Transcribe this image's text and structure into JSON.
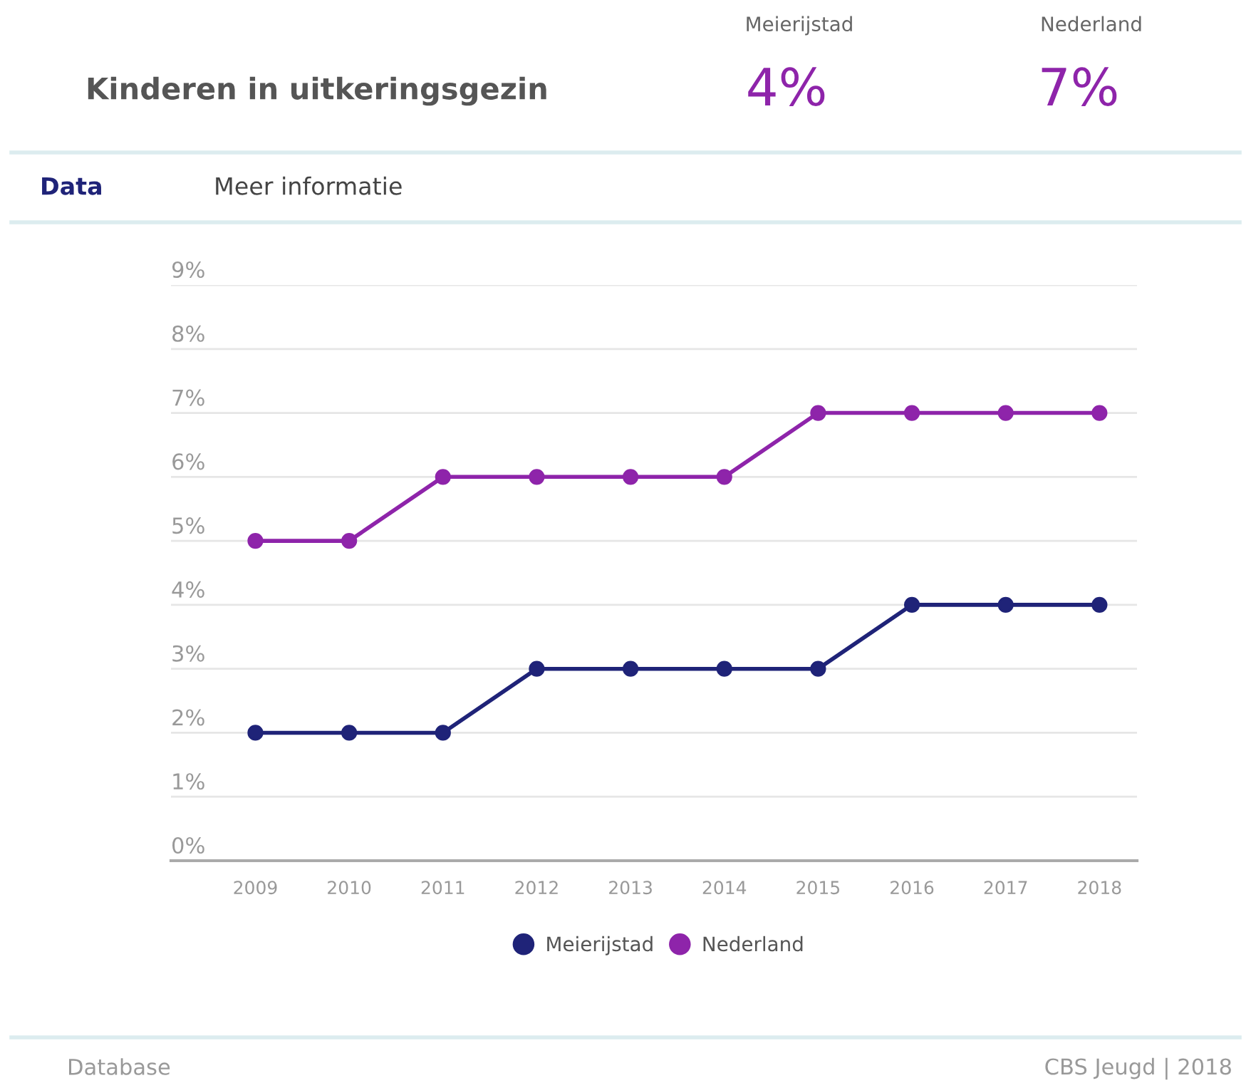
{
  "chart_data": {
    "type": "line",
    "title": "Kinderen in uitkeringsgezin",
    "annotations": [
      "Meierijstad",
      "Nederland",
      "4%",
      "7%",
      "Data",
      "Meer informatie",
      "Database",
      "CBS Jeugd | 2018"
    ],
    "categories": [
      "2009",
      "2010",
      "2011",
      "2012",
      "2013",
      "2014",
      "2015",
      "2016",
      "2017",
      "2018"
    ],
    "series": [
      {
        "name": "Meierijstad",
        "color": "#1f2378",
        "values": [
          2,
          2,
          2,
          3,
          3,
          3,
          3,
          4,
          4,
          4
        ]
      },
      {
        "name": "Nederland",
        "color": "#8e24aa",
        "values": [
          5,
          5,
          6,
          6,
          6,
          6,
          7,
          7,
          7,
          7
        ]
      }
    ],
    "ylim": [
      0,
      9
    ],
    "yticks": [
      {
        "value": 0,
        "label": "0%"
      },
      {
        "value": 1,
        "label": "1%"
      },
      {
        "value": 2,
        "label": "2%"
      },
      {
        "value": 3,
        "label": "3%"
      },
      {
        "value": 4,
        "label": "4%"
      },
      {
        "value": 5,
        "label": "5%"
      },
      {
        "value": 6,
        "label": "6%"
      },
      {
        "value": 7,
        "label": "7%"
      },
      {
        "value": 8,
        "label": "8%"
      },
      {
        "value": 9,
        "label": "9%"
      }
    ],
    "grid": "y",
    "legend": "bottom",
    "marker": "circle",
    "line_style": "solid"
  }
}
